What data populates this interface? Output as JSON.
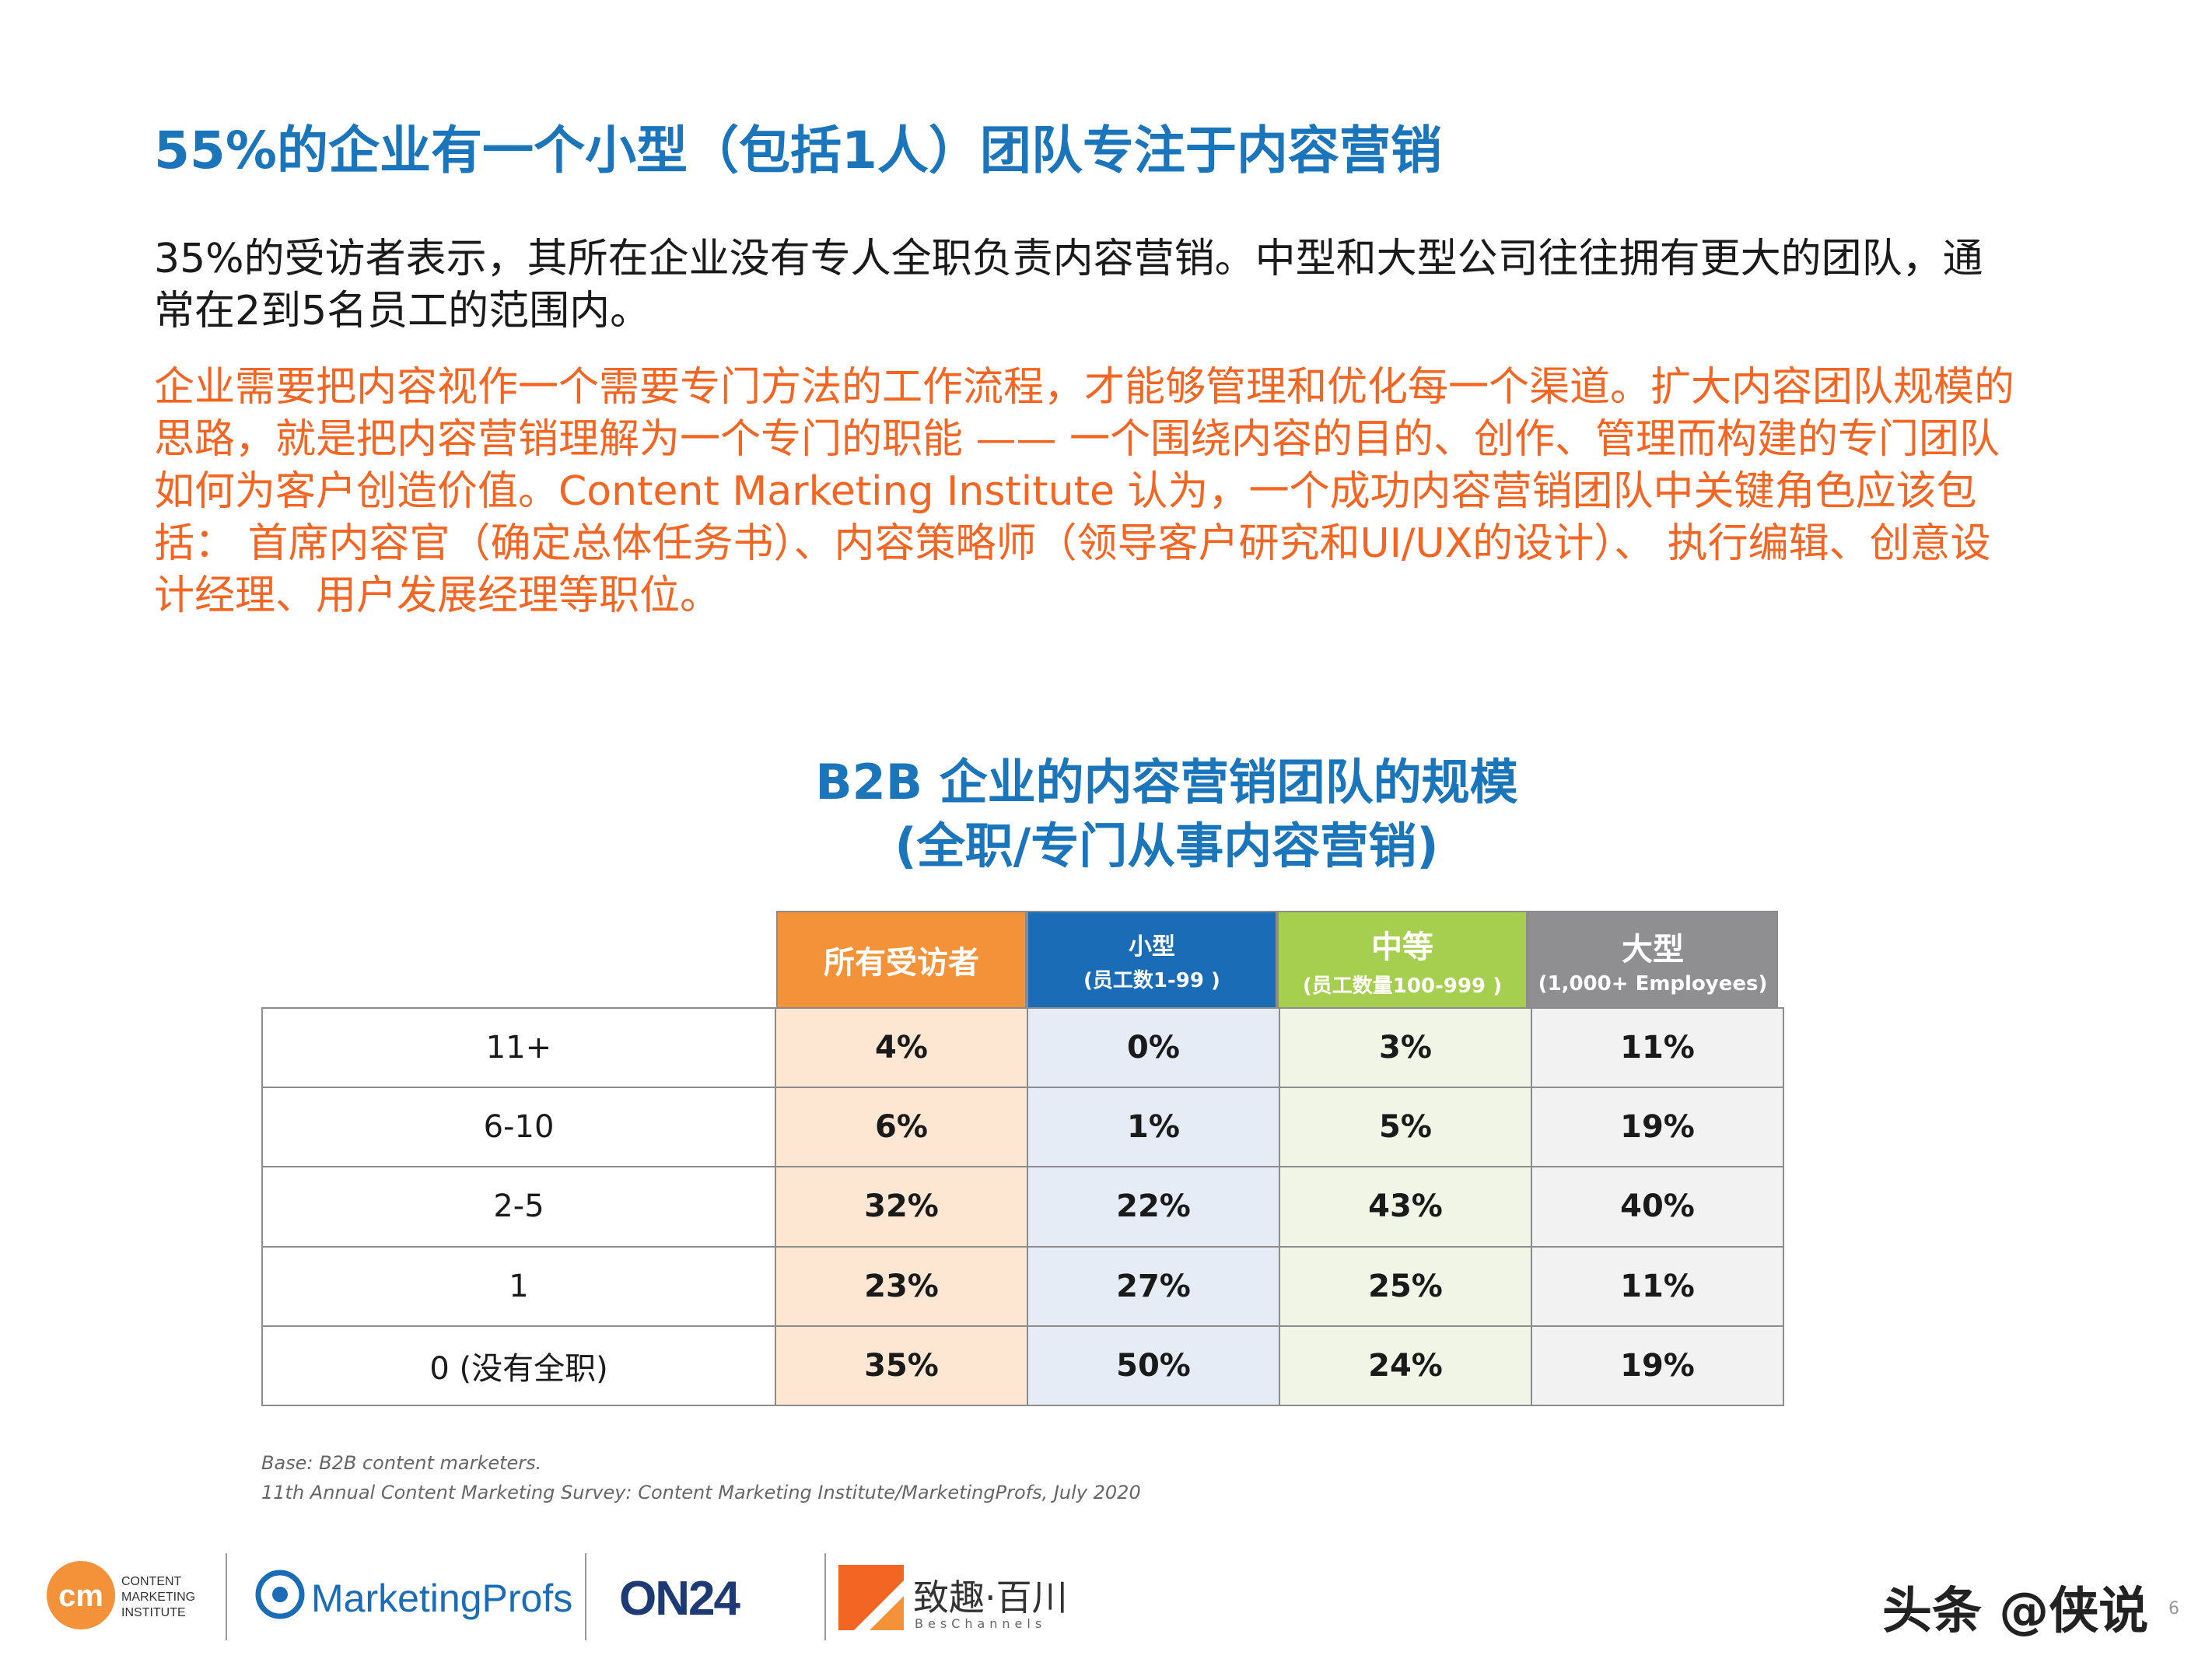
{
  "headline": "55%的企业有一个小型（包括1人）团队专注于内容营销",
  "paragraph_black": "35%的受访者表示，其所在企业没有专人全职负责内容营销。中型和大型公司往往拥有更大的团队，通常在2到5名员工的范围内。",
  "paragraph_orange": "企业需要把内容视作一个需要专门方法的工作流程，才能够管理和优化每一个渠道。扩大内容团队规模的思路，就是把内容营销理解为一个专门的职能 —— 一个围绕内容的目的、创作、管理而构建的专门团队如何为客户创造价值。Content Marketing Institute 认为，一个成功内容营销团队中关键角色应该包括： 首席内容官（确定总体任务书）、内容策略师（领导客户研究和UI/UX的设计）、 执行编辑、创意设计经理、用户发展经理等职位。",
  "chart_data": {
    "type": "table",
    "title": "B2B 企业的内容营销团队的规模",
    "subtitle": "(全职/专门从事内容营销)",
    "columns": [
      {
        "name": "所有受访者",
        "sub": "",
        "color": "#f39238"
      },
      {
        "name": "小型",
        "sub": "(员工数1-99 )",
        "color": "#1b6cb6"
      },
      {
        "name": "中等",
        "sub": "(员工数量100-999 )",
        "color": "#a6cf4f"
      },
      {
        "name": "大型",
        "sub": "(1,000+ Employees)",
        "color": "#8f8f92"
      }
    ],
    "rows": [
      {
        "label": "11+",
        "values": [
          "4%",
          "0%",
          "3%",
          "11%"
        ]
      },
      {
        "label": "6-10",
        "values": [
          "6%",
          "1%",
          "5%",
          "19%"
        ]
      },
      {
        "label": "2-5",
        "values": [
          "32%",
          "22%",
          "43%",
          "40%"
        ]
      },
      {
        "label": "1",
        "values": [
          "23%",
          "27%",
          "25%",
          "11%"
        ]
      },
      {
        "label": "0 (没有全职)",
        "values": [
          "35%",
          "50%",
          "24%",
          "19%"
        ]
      }
    ]
  },
  "notes": {
    "base": "Base: B2B content marketers.",
    "source": "11th Annual Content Marketing Survey: Content Marketing Institute/MarketingProfs, July 2020"
  },
  "footer": {
    "cmi_mark": "cm",
    "cmi_lines": [
      "CONTENT",
      "MARKETING",
      "INSTITUTE"
    ],
    "marketingprofs": "MarketingProfs",
    "on24": "ON24",
    "beschannels": "致趣·百川",
    "beschannels_sub": "BesChannels",
    "toutiao": "头条 @侠说",
    "page_number": "6"
  }
}
